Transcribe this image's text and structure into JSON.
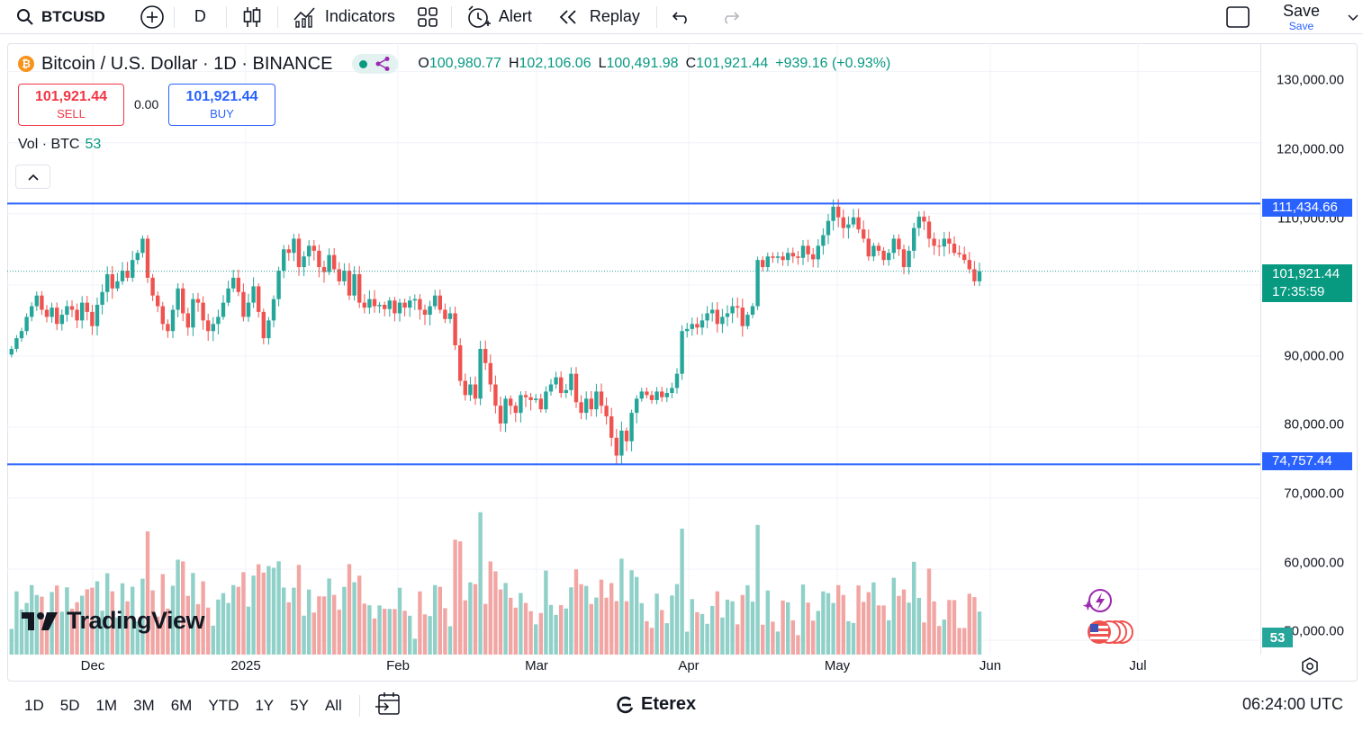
{
  "toolbar": {
    "symbol": "BTCUSD",
    "interval": "D",
    "indicators_label": "Indicators",
    "alert_label": "Alert",
    "replay_label": "Replay",
    "save_label": "Save",
    "save_sub": "Save"
  },
  "legend": {
    "title": "Bitcoin / U.S. Dollar · 1D · BINANCE",
    "open_label": "O",
    "open": "100,980.77",
    "high_label": "H",
    "high": "102,106.06",
    "low_label": "L",
    "low": "100,491.98",
    "close_label": "C",
    "close": "101,921.44",
    "change": "+939.16 (+0.93%)"
  },
  "trade": {
    "sell_price": "101,921.44",
    "sell_label": "SELL",
    "spread": "0.00",
    "buy_price": "101,921.44",
    "buy_label": "BUY"
  },
  "volume_legend": {
    "label": "Vol · BTC",
    "value": "53"
  },
  "price_axis": {
    "ticks": [
      "130,000.00",
      "120,000.00",
      "90,000.00",
      "80,000.00",
      "70,000.00",
      "60,000.00"
    ],
    "tick_partial_110": "110,000.00",
    "tick_partial_50": "50,000.00",
    "upper_line_label": "111,434.66",
    "lower_line_label": "74,757.44",
    "last_price": "101,921.44",
    "countdown": "17:35:59",
    "volume_value": "53"
  },
  "time_axis": {
    "ticks": [
      "Dec",
      "2025",
      "Feb",
      "Mar",
      "Apr",
      "May",
      "Jun",
      "Jul"
    ]
  },
  "branding": {
    "logo_text": "TradingView",
    "broker": "Eterex"
  },
  "bottom": {
    "ranges": [
      "1D",
      "5D",
      "1M",
      "3M",
      "6M",
      "YTD",
      "1Y",
      "5Y",
      "All"
    ],
    "clock": "06:24:00 UTC"
  },
  "colors": {
    "up": "#26a69a",
    "down": "#ef5350",
    "line": "#2962ff",
    "up_vol": "#8fd0c8",
    "down_vol": "#f2a6a4"
  },
  "chart_data": {
    "type": "candlestick",
    "title": "Bitcoin / U.S. Dollar · 1D · BINANCE",
    "xlabel": "",
    "ylabel": "",
    "ylim": [
      48000,
      134000
    ],
    "horizontal_lines": [
      111434.66,
      74757.44
    ],
    "last_price": 101921.44,
    "months": [
      "Dec",
      "2025",
      "Feb",
      "Mar",
      "Apr",
      "May",
      "Jun",
      "Jul"
    ],
    "close_series_approx": [
      91000,
      92500,
      93500,
      95500,
      97000,
      98500,
      96500,
      95500,
      96800,
      94500,
      95800,
      97000,
      96500,
      95000,
      97500,
      96200,
      94200,
      97200,
      99000,
      101500,
      99500,
      100500,
      102000,
      101000,
      103500,
      104500,
      106500,
      101000,
      98500,
      97000,
      94500,
      93500,
      96500,
      99500,
      96000,
      94000,
      98000,
      97500,
      95000,
      93500,
      94500,
      95500,
      97500,
      99500,
      101000,
      99000,
      95500,
      97500,
      99800,
      96200,
      92500,
      95000,
      98000,
      102000,
      105000,
      104500,
      106500,
      102500,
      104000,
      105500,
      104800,
      102500,
      101800,
      104200,
      102200,
      100500,
      102000,
      98500,
      101500,
      97500,
      96800,
      98000,
      97000,
      97200,
      96600,
      97800,
      96000,
      97500,
      96800,
      97800,
      98000,
      96500,
      95800,
      97000,
      98500,
      96500,
      95200,
      96000,
      91500,
      86500,
      84500,
      86000,
      84000,
      91000,
      89000,
      86000,
      83000,
      80500,
      84000,
      83000,
      82000,
      84500,
      84200,
      83800,
      84000,
      82500,
      85000,
      86000,
      87000,
      84800,
      85200,
      87500,
      83500,
      82000,
      84000,
      82500,
      85000,
      83000,
      81500,
      78500,
      76000,
      79500,
      78000,
      82000,
      84000,
      85000,
      84500,
      83800,
      85000,
      84200,
      84800,
      85500,
      87500,
      93500,
      93800,
      94500,
      94000,
      95000,
      96000,
      96500,
      94500,
      95500,
      96000,
      97000,
      96800,
      94200,
      95800,
      97000,
      103500,
      102500,
      104000,
      103800,
      104000,
      103500,
      104500,
      104000,
      103800,
      105500,
      104300,
      103600,
      105500,
      107000,
      109000,
      111000,
      109500,
      108000,
      108500,
      109500,
      107800,
      106500,
      104000,
      105500,
      104800,
      103500,
      104500,
      106500,
      105000,
      102500,
      104800,
      108000,
      109600,
      108900,
      106500,
      105500,
      105400,
      106500,
      105800,
      104500,
      104300,
      103500,
      102200,
      100500,
      101921
    ]
  }
}
